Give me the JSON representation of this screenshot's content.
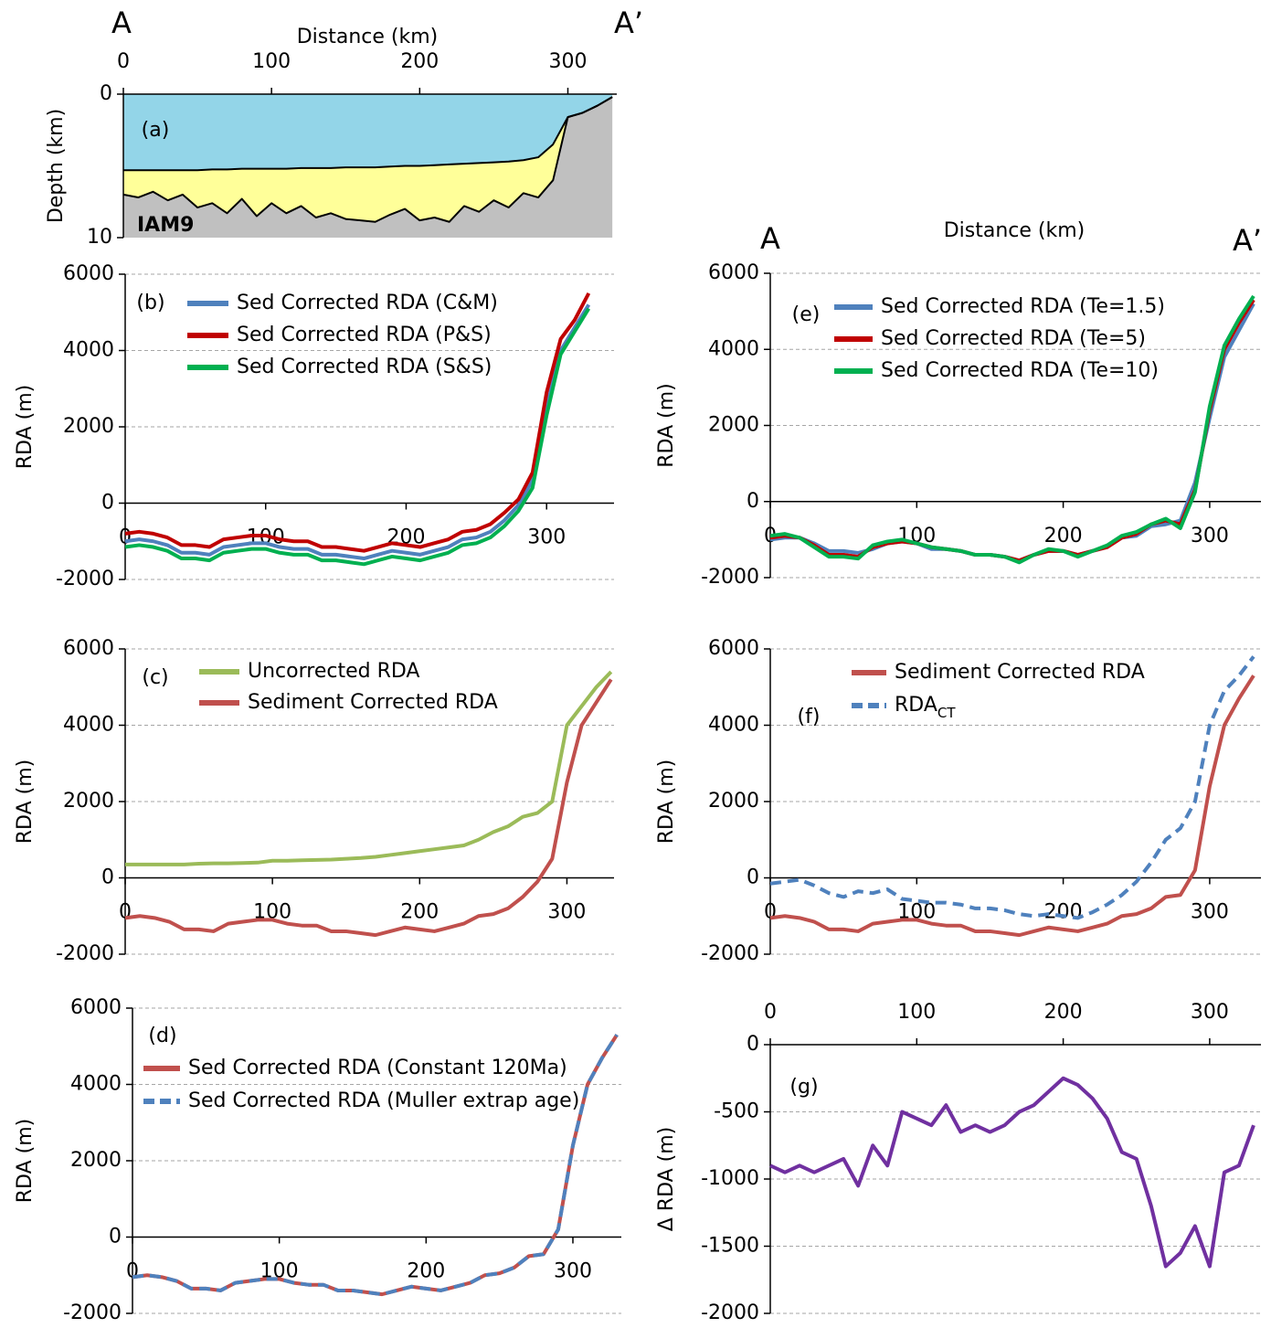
{
  "chart_data": [
    {
      "type": "area",
      "panel_label": "(a)",
      "xlabel": "Distance (km)",
      "ylabel": "Depth (km)",
      "left_end": "A",
      "right_end": "A’",
      "annotation": "IAM9",
      "x_axis": "top",
      "y_reversed": true,
      "grid": false,
      "outline": "#000000",
      "between_color": "#ffff99",
      "xlim": [
        0,
        333
      ],
      "xticks": [
        0,
        100,
        200,
        300
      ],
      "ylim": [
        0,
        10
      ],
      "yticks": [
        0,
        10
      ],
      "x": [
        0,
        10,
        20,
        30,
        40,
        50,
        60,
        70,
        80,
        90,
        100,
        110,
        120,
        130,
        140,
        150,
        160,
        170,
        180,
        190,
        200,
        210,
        220,
        230,
        240,
        250,
        260,
        270,
        280,
        290,
        300,
        310,
        320,
        330
      ],
      "series": [
        {
          "color": "#93d5e8",
          "values": [
            5.3,
            5.3,
            5.3,
            5.3,
            5.3,
            5.3,
            5.25,
            5.25,
            5.2,
            5.2,
            5.2,
            5.2,
            5.15,
            5.15,
            5.15,
            5.1,
            5.1,
            5.1,
            5.05,
            5.0,
            5.0,
            4.95,
            4.9,
            4.85,
            4.8,
            4.75,
            4.7,
            4.6,
            4.4,
            3.5,
            1.6,
            1.3,
            0.8,
            0.2
          ]
        },
        {
          "color": "#c0c0c0",
          "values": [
            7.0,
            7.2,
            6.8,
            7.4,
            7.0,
            7.9,
            7.6,
            8.3,
            7.3,
            8.5,
            7.6,
            8.3,
            7.8,
            8.6,
            8.3,
            8.7,
            8.8,
            8.9,
            8.4,
            8.0,
            8.8,
            8.6,
            8.9,
            7.8,
            8.2,
            7.4,
            7.9,
            6.9,
            7.2,
            6.0,
            1.6,
            1.3,
            0.8,
            0.2
          ]
        }
      ]
    },
    {
      "type": "line",
      "panel_label": "(b)",
      "ylabel": "RDA (m)",
      "x_axis": "zero",
      "grid": true,
      "xlim": [
        0,
        348
      ],
      "xticks": [
        0,
        100,
        200,
        300
      ],
      "ylim": [
        -2000,
        6000
      ],
      "yticks": [
        -2000,
        0,
        2000,
        4000,
        6000
      ],
      "x": [
        0,
        10,
        20,
        30,
        40,
        50,
        60,
        70,
        80,
        90,
        100,
        110,
        120,
        130,
        140,
        150,
        160,
        170,
        180,
        190,
        200,
        210,
        220,
        230,
        240,
        250,
        260,
        270,
        280,
        290,
        300,
        310,
        320,
        330
      ],
      "series": [
        {
          "name": "Sed Corrected RDA (C&M)",
          "color": "#4f81bd",
          "values": [
            -1000,
            -950,
            -1000,
            -1100,
            -1300,
            -1300,
            -1350,
            -1150,
            -1100,
            -1050,
            -1050,
            -1150,
            -1200,
            -1200,
            -1350,
            -1350,
            -1400,
            -1450,
            -1350,
            -1250,
            -1300,
            -1350,
            -1250,
            -1150,
            -950,
            -900,
            -750,
            -450,
            -50,
            600,
            2500,
            4000,
            4600,
            5200
          ]
        },
        {
          "name": "Sed Corrected RDA (P&S)",
          "color": "#c00000",
          "values": [
            -800,
            -750,
            -800,
            -900,
            -1100,
            -1100,
            -1150,
            -950,
            -900,
            -850,
            -850,
            -950,
            -1000,
            -1000,
            -1150,
            -1150,
            -1200,
            -1250,
            -1150,
            -1050,
            -1100,
            -1150,
            -1050,
            -950,
            -750,
            -700,
            -550,
            -250,
            100,
            800,
            2900,
            4300,
            4800,
            5500
          ]
        },
        {
          "name": "Sed Corrected RDA (S&S)",
          "color": "#00b050",
          "values": [
            -1150,
            -1100,
            -1150,
            -1250,
            -1450,
            -1450,
            -1500,
            -1300,
            -1250,
            -1200,
            -1200,
            -1300,
            -1350,
            -1350,
            -1500,
            -1500,
            -1550,
            -1600,
            -1500,
            -1400,
            -1450,
            -1500,
            -1400,
            -1300,
            -1100,
            -1050,
            -900,
            -600,
            -200,
            400,
            2300,
            3900,
            4500,
            5100
          ]
        }
      ]
    },
    {
      "type": "line",
      "panel_label": "(c)",
      "ylabel": "RDA (m)",
      "x_axis": "zero",
      "grid": true,
      "xlim": [
        0,
        332
      ],
      "xticks": [
        0,
        100,
        200,
        300
      ],
      "ylim": [
        -2000,
        6000
      ],
      "yticks": [
        -2000,
        0,
        2000,
        4000,
        6000
      ],
      "x": [
        0,
        10,
        20,
        30,
        40,
        50,
        60,
        70,
        80,
        90,
        100,
        110,
        120,
        130,
        140,
        150,
        160,
        170,
        180,
        190,
        200,
        210,
        220,
        230,
        240,
        250,
        260,
        270,
        280,
        290,
        300,
        310,
        320,
        330
      ],
      "series": [
        {
          "name": "Uncorrected RDA",
          "color": "#9bbb59",
          "values": [
            350,
            350,
            350,
            350,
            350,
            370,
            380,
            380,
            390,
            400,
            450,
            450,
            460,
            470,
            480,
            500,
            520,
            550,
            600,
            650,
            700,
            750,
            800,
            850,
            1000,
            1200,
            1350,
            1600,
            1700,
            2000,
            4000,
            4500,
            5000,
            5400
          ]
        },
        {
          "name": "Sediment Corrected RDA",
          "color": "#c0504d",
          "values": [
            -1050,
            -1000,
            -1050,
            -1150,
            -1350,
            -1350,
            -1400,
            -1200,
            -1150,
            -1100,
            -1100,
            -1200,
            -1250,
            -1250,
            -1400,
            -1400,
            -1450,
            -1500,
            -1400,
            -1300,
            -1350,
            -1400,
            -1300,
            -1200,
            -1000,
            -950,
            -800,
            -500,
            -100,
            500,
            2500,
            4000,
            4600,
            5200
          ]
        }
      ]
    },
    {
      "type": "line",
      "panel_label": "(d)",
      "ylabel": "RDA (m)",
      "x_axis": "zero",
      "grid": true,
      "xlim": [
        0,
        333
      ],
      "xticks": [
        0,
        100,
        200,
        300
      ],
      "ylim": [
        -2000,
        6000
      ],
      "yticks": [
        -2000,
        0,
        2000,
        4000,
        6000
      ],
      "x": [
        0,
        10,
        20,
        30,
        40,
        50,
        60,
        70,
        80,
        90,
        100,
        110,
        120,
        130,
        140,
        150,
        160,
        170,
        180,
        190,
        200,
        210,
        220,
        230,
        240,
        250,
        260,
        270,
        280,
        290,
        300,
        310,
        320,
        330
      ],
      "series": [
        {
          "name": "Sed Corrected RDA (Constant 120Ma)",
          "color": "#c0504d",
          "values": [
            -1050,
            -1000,
            -1050,
            -1150,
            -1350,
            -1350,
            -1400,
            -1200,
            -1150,
            -1100,
            -1100,
            -1200,
            -1250,
            -1250,
            -1400,
            -1400,
            -1450,
            -1500,
            -1400,
            -1300,
            -1350,
            -1400,
            -1300,
            -1200,
            -1000,
            -950,
            -800,
            -500,
            -450,
            200,
            2400,
            4000,
            4700,
            5300
          ]
        },
        {
          "name": "Sed Corrected RDA (Muller extrap age)",
          "color": "#4f81bd",
          "dash": true,
          "values": [
            -1050,
            -1000,
            -1050,
            -1150,
            -1350,
            -1350,
            -1400,
            -1200,
            -1150,
            -1100,
            -1100,
            -1200,
            -1250,
            -1250,
            -1400,
            -1400,
            -1450,
            -1500,
            -1400,
            -1300,
            -1350,
            -1400,
            -1300,
            -1200,
            -1000,
            -950,
            -800,
            -500,
            -450,
            200,
            2400,
            4000,
            4700,
            5300
          ]
        }
      ]
    },
    {
      "type": "line",
      "panel_label": "(e)",
      "ylabel": "RDA (m)",
      "xlabel": "Distance (km)",
      "left_end": "A",
      "right_end": "A’",
      "x_axis": "zero",
      "grid": true,
      "xlim": [
        0,
        335
      ],
      "xticks": [
        0,
        100,
        200,
        300
      ],
      "ylim": [
        -2000,
        6000
      ],
      "yticks": [
        -2000,
        0,
        2000,
        4000,
        6000
      ],
      "x": [
        0,
        10,
        20,
        30,
        40,
        50,
        60,
        70,
        80,
        90,
        100,
        110,
        120,
        130,
        140,
        150,
        160,
        170,
        180,
        190,
        200,
        210,
        220,
        230,
        240,
        250,
        260,
        270,
        280,
        290,
        300,
        310,
        320,
        330
      ],
      "series": [
        {
          "name": "Sed Corrected RDA (Te=1.5)",
          "color": "#4f81bd",
          "values": [
            -1000,
            -950,
            -950,
            -1100,
            -1300,
            -1300,
            -1350,
            -1250,
            -1100,
            -1050,
            -1100,
            -1250,
            -1250,
            -1300,
            -1400,
            -1400,
            -1450,
            -1550,
            -1400,
            -1300,
            -1300,
            -1400,
            -1300,
            -1200,
            -950,
            -900,
            -650,
            -600,
            -500,
            500,
            2200,
            3800,
            4500,
            5200
          ]
        },
        {
          "name": "Sed Corrected RDA (Te=5)",
          "color": "#c00000",
          "values": [
            -950,
            -900,
            -950,
            -1150,
            -1400,
            -1400,
            -1450,
            -1200,
            -1100,
            -1050,
            -1100,
            -1200,
            -1250,
            -1300,
            -1400,
            -1400,
            -1450,
            -1550,
            -1400,
            -1300,
            -1300,
            -1400,
            -1300,
            -1200,
            -950,
            -850,
            -600,
            -500,
            -600,
            300,
            2400,
            4000,
            4700,
            5300
          ]
        },
        {
          "name": "Sed Corrected RDA (Te=10)",
          "color": "#00b050",
          "values": [
            -900,
            -850,
            -950,
            -1200,
            -1450,
            -1450,
            -1500,
            -1150,
            -1050,
            -1000,
            -1100,
            -1200,
            -1250,
            -1300,
            -1400,
            -1400,
            -1450,
            -1600,
            -1400,
            -1250,
            -1300,
            -1450,
            -1300,
            -1150,
            -900,
            -800,
            -600,
            -450,
            -700,
            250,
            2500,
            4100,
            4800,
            5400
          ]
        }
      ]
    },
    {
      "type": "line",
      "panel_label": "(f)",
      "ylabel": "RDA (m)",
      "x_axis": "zero",
      "grid": true,
      "xlim": [
        0,
        335
      ],
      "xticks": [
        0,
        100,
        200,
        300
      ],
      "ylim": [
        -2000,
        6000
      ],
      "yticks": [
        -2000,
        0,
        2000,
        4000,
        6000
      ],
      "x": [
        0,
        10,
        20,
        30,
        40,
        50,
        60,
        70,
        80,
        90,
        100,
        110,
        120,
        130,
        140,
        150,
        160,
        170,
        180,
        190,
        200,
        210,
        220,
        230,
        240,
        250,
        260,
        270,
        280,
        290,
        300,
        310,
        320,
        330
      ],
      "series": [
        {
          "name": "Sediment Corrected RDA",
          "color": "#c0504d",
          "values": [
            -1050,
            -1000,
            -1050,
            -1150,
            -1350,
            -1350,
            -1400,
            -1200,
            -1150,
            -1100,
            -1100,
            -1200,
            -1250,
            -1250,
            -1400,
            -1400,
            -1450,
            -1500,
            -1400,
            -1300,
            -1350,
            -1400,
            -1300,
            -1200,
            -1000,
            -950,
            -800,
            -500,
            -450,
            200,
            2400,
            4000,
            4700,
            5300
          ]
        },
        {
          "name": "RDA",
          "subscript": "CT",
          "color": "#4f81bd",
          "dash": true,
          "values": [
            -150,
            -100,
            -50,
            -200,
            -400,
            -500,
            -350,
            -400,
            -300,
            -550,
            -600,
            -650,
            -650,
            -700,
            -800,
            -800,
            -850,
            -950,
            -1000,
            -950,
            -1000,
            -1050,
            -900,
            -700,
            -450,
            -100,
            400,
            1000,
            1300,
            2000,
            4000,
            4900,
            5300,
            5800
          ]
        }
      ]
    },
    {
      "type": "line",
      "panel_label": "(g)",
      "ylabel": "Δ RDA (m)",
      "x_axis": "top",
      "grid": true,
      "xlim": [
        0,
        335
      ],
      "xticks": [
        0,
        100,
        200,
        300
      ],
      "ylim": [
        -2000,
        0
      ],
      "yticks": [
        -2000,
        -1500,
        -1000,
        -500,
        0
      ],
      "x": [
        0,
        10,
        20,
        30,
        40,
        50,
        60,
        70,
        80,
        90,
        100,
        110,
        120,
        130,
        140,
        150,
        160,
        170,
        180,
        190,
        200,
        210,
        220,
        230,
        240,
        250,
        260,
        270,
        280,
        290,
        300,
        310,
        320,
        330
      ],
      "series": [
        {
          "color": "#7030a0",
          "values": [
            -900,
            -950,
            -900,
            -950,
            -900,
            -850,
            -1050,
            -750,
            -900,
            -500,
            -550,
            -600,
            -450,
            -650,
            -600,
            -650,
            -600,
            -500,
            -450,
            -350,
            -250,
            -300,
            -400,
            -550,
            -800,
            -850,
            -1200,
            -1650,
            -1550,
            -1350,
            -1650,
            -950,
            -900,
            -600
          ]
        }
      ]
    }
  ]
}
